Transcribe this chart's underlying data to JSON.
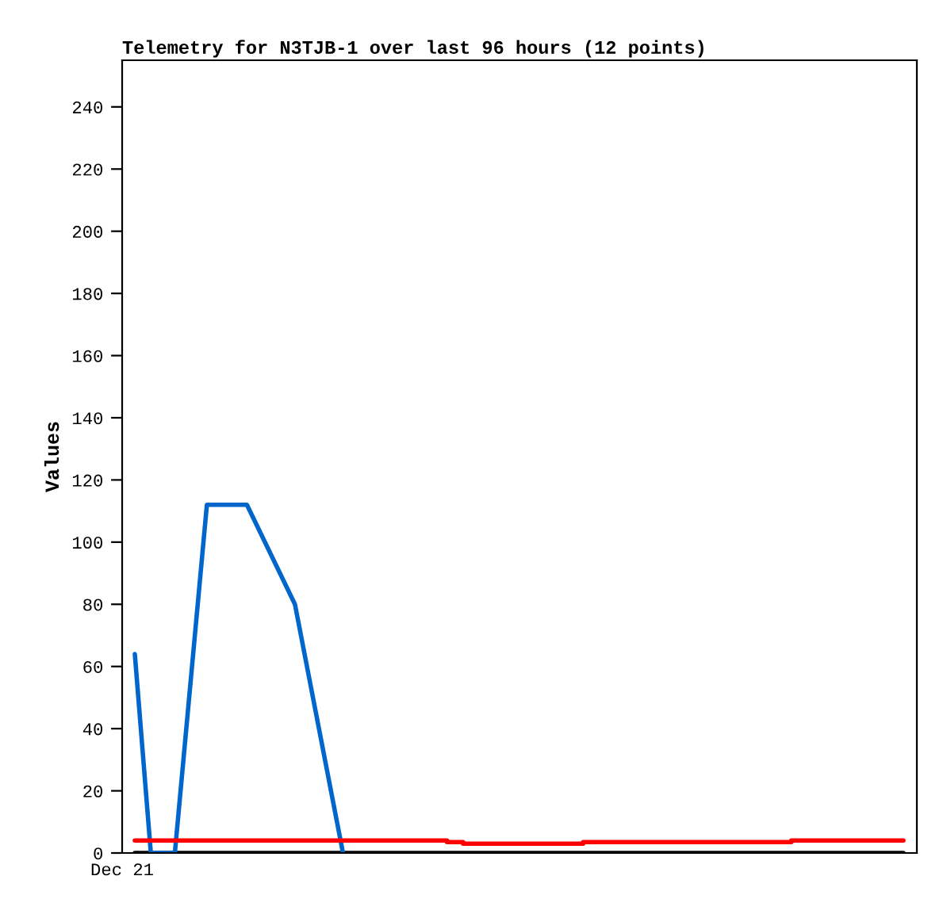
{
  "chart_data": {
    "type": "line",
    "title": "Telemetry for N3TJB-1 over last 96 hours (12 points)",
    "ylabel": "Values",
    "annotations": [
      "Dec 21"
    ],
    "categories": [
      null,
      null,
      null,
      null,
      null,
      null,
      null,
      null,
      null,
      null,
      null,
      null,
      null,
      null,
      null,
      null,
      null,
      null,
      null,
      null,
      null,
      null,
      null,
      null,
      null,
      null,
      null,
      null,
      null,
      null,
      null,
      null,
      null,
      null,
      null,
      null,
      null,
      null,
      null,
      null,
      null,
      null,
      null,
      null,
      null,
      null,
      null,
      null,
      null,
      null,
      null,
      null,
      null,
      null,
      null,
      null,
      null,
      null,
      null,
      null,
      null,
      null,
      null,
      null,
      null,
      null,
      null,
      null,
      null,
      null,
      null,
      null,
      null,
      null,
      null,
      null,
      null,
      null,
      null,
      null,
      null,
      null,
      null,
      null,
      null,
      null,
      null,
      null,
      null,
      null,
      null,
      null,
      null,
      null,
      null,
      null,
      null
    ],
    "ylim": [
      0,
      255
    ],
    "yticks": [
      0,
      20,
      40,
      60,
      80,
      100,
      120,
      140,
      160,
      180,
      200,
      220,
      240
    ],
    "grid": false,
    "legend": false,
    "tick_labels": "y",
    "series": [
      {
        "color": "#000000",
        "values": [
          0,
          null,
          null,
          null,
          null,
          null,
          null,
          null,
          null,
          null,
          null,
          null,
          null,
          null,
          null,
          null,
          null,
          null,
          null,
          null,
          null,
          null,
          null,
          null,
          null,
          null,
          null,
          null,
          null,
          null,
          null,
          null,
          null,
          null,
          null,
          null,
          null,
          null,
          null,
          null,
          null,
          null,
          null,
          null,
          null,
          null,
          null,
          null,
          null,
          null,
          null,
          null,
          null,
          null,
          null,
          null,
          null,
          null,
          null,
          null,
          null,
          null,
          null,
          null,
          null,
          null,
          null,
          null,
          null,
          null,
          null,
          null,
          null,
          null,
          null,
          null,
          null,
          null,
          null,
          null,
          null,
          null,
          null,
          null,
          null,
          null,
          null,
          null,
          null,
          null,
          null,
          null,
          null,
          null,
          null,
          null,
          0
        ]
      },
      {
        "color": "#0066cc",
        "values": [
          64,
          null,
          0,
          null,
          null,
          0,
          null,
          null,
          null,
          112,
          null,
          null,
          null,
          null,
          112,
          null,
          null,
          null,
          null,
          null,
          80,
          null,
          null,
          null,
          null,
          null,
          0,
          null,
          null,
          null,
          null,
          null,
          null,
          null,
          null,
          null,
          null,
          null,
          null,
          null,
          null,
          null,
          null,
          null,
          null,
          null,
          null,
          null,
          null,
          null,
          null,
          null,
          null,
          null,
          null,
          null,
          null,
          null,
          null,
          null,
          null,
          null,
          null,
          null,
          null,
          null,
          null,
          null,
          null,
          null,
          null,
          null,
          null,
          null,
          null,
          null,
          null,
          null,
          null,
          null,
          null,
          null,
          null,
          null,
          null,
          null,
          null,
          null,
          null,
          null,
          null,
          null,
          null,
          null,
          null,
          null,
          null
        ]
      },
      {
        "type": "step",
        "color": "#ff0000",
        "values": [
          4,
          null,
          null,
          null,
          null,
          null,
          null,
          null,
          null,
          null,
          null,
          null,
          null,
          null,
          null,
          null,
          null,
          null,
          null,
          null,
          null,
          null,
          null,
          null,
          null,
          null,
          null,
          null,
          null,
          null,
          null,
          null,
          null,
          null,
          null,
          null,
          null,
          null,
          null,
          3.5,
          null,
          3,
          null,
          null,
          null,
          null,
          null,
          null,
          null,
          null,
          null,
          null,
          null,
          null,
          null,
          null,
          3.5,
          null,
          null,
          null,
          null,
          null,
          null,
          null,
          null,
          null,
          null,
          null,
          null,
          null,
          null,
          null,
          null,
          null,
          null,
          null,
          null,
          null,
          null,
          null,
          null,
          null,
          4,
          null,
          null,
          null,
          null,
          null,
          null,
          null,
          null,
          null,
          null,
          null,
          null,
          null,
          4
        ]
      }
    ]
  }
}
